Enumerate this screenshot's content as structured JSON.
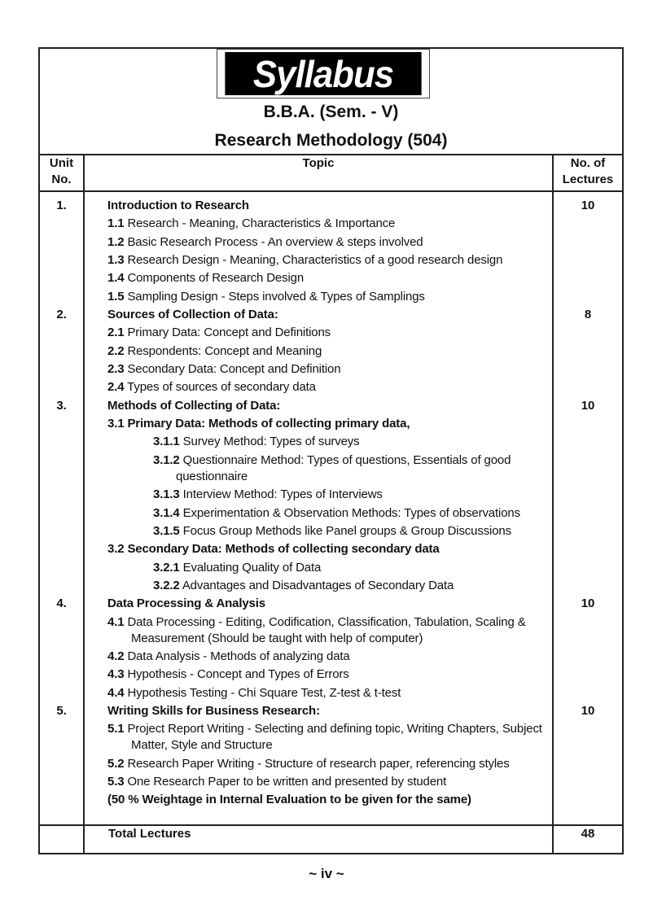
{
  "logo_text": "Syllabus",
  "course": "B.B.A. (Sem. - V)",
  "subject": "Research Methodology (504)",
  "headers": {
    "unit": [
      "Unit",
      "No."
    ],
    "topic": "Topic",
    "lectures": [
      "No. of",
      "Lectures"
    ]
  },
  "entries": [
    {
      "unit": "1.",
      "lectures": "10",
      "num": "",
      "text": "Introduction to Research",
      "bold": true,
      "level": 1
    },
    {
      "num": "1.1",
      "text": "Research - Meaning, Characteristics & Importance",
      "level": 1
    },
    {
      "num": "1.2",
      "text": "Basic Research Process - An overview & steps involved",
      "level": 1
    },
    {
      "num": "1.3",
      "text": "Research Design - Meaning, Characteristics of  a good research design",
      "level": 1
    },
    {
      "num": "1.4",
      "text": "Components of Research Design",
      "level": 1
    },
    {
      "num": "1.5",
      "text": "Sampling Design - Steps involved & Types of Samplings",
      "level": 1
    },
    {
      "unit": "2.",
      "lectures": "8",
      "num": "",
      "text": "Sources of Collection of Data:",
      "bold": true,
      "level": 1
    },
    {
      "num": "2.1",
      "text": "Primary Data: Concept and Definitions",
      "level": 1
    },
    {
      "num": "2.2",
      "text": "Respondents: Concept and Meaning",
      "level": 1
    },
    {
      "num": "2.3",
      "text": "Secondary Data: Concept and Definition",
      "level": 1
    },
    {
      "num": "2.4",
      "text": "Types of sources of secondary data",
      "level": 1
    },
    {
      "unit": "3.",
      "lectures": "10",
      "num": "",
      "text": "Methods of Collecting of Data:",
      "bold": true,
      "level": 1
    },
    {
      "num": "3.1",
      "text": "Primary Data: Methods of collecting primary data,",
      "bold": true,
      "level": 1
    },
    {
      "num": "3.1.1",
      "text": "Survey Method: Types of surveys",
      "level": 2
    },
    {
      "num": "3.1.2",
      "text": "Questionnaire Method: Types of questions, Essentials of good questionnaire",
      "level": 2
    },
    {
      "num": "3.1.3",
      "text": "Interview Method: Types of Interviews",
      "level": 2
    },
    {
      "num": "3.1.4",
      "text": "Experimentation & Observation Methods: Types of observations",
      "level": 2
    },
    {
      "num": "3.1.5",
      "text": "Focus Group Methods like Panel groups & Group Discussions",
      "level": 2
    },
    {
      "num": "3.2",
      "text": "Secondary Data: Methods of collecting secondary data",
      "bold": true,
      "level": 1
    },
    {
      "num": "3.2.1",
      "text": "Evaluating Quality of Data",
      "level": 2
    },
    {
      "num": "3.2.2",
      "text": "Advantages and Disadvantages of Secondary Data",
      "level": 2
    },
    {
      "unit": "4.",
      "lectures": "10",
      "num": "",
      "text": "Data Processing & Analysis",
      "bold": true,
      "level": 1
    },
    {
      "num": "4.1",
      "text": "Data Processing - Editing, Codification, Classification, Tabulation, Scaling & Measurement (Should be taught with help of computer)",
      "level": 1
    },
    {
      "num": "4.2",
      "text": "Data Analysis - Methods of analyzing data",
      "level": 1
    },
    {
      "num": "4.3",
      "text": "Hypothesis -  Concept and Types of Errors",
      "level": 1
    },
    {
      "num": "4.4",
      "text": "Hypothesis Testing - Chi Square Test, Z-test & t-test",
      "level": 1
    },
    {
      "unit": "5.",
      "lectures": "10",
      "num": "",
      "text": "Writing Skills for Business Research:",
      "bold": true,
      "level": 1
    },
    {
      "num": "5.1",
      "text": "Project Report Writing - Selecting and defining topic, Writing Chapters, Subject Matter, Style and Structure",
      "level": 1
    },
    {
      "num": "5.2",
      "text": "Research Paper Writing - Structure of research paper, referencing styles",
      "level": 1
    },
    {
      "num": "5.3",
      "text": "One Research Paper to be written and presented by student",
      "level": 1
    },
    {
      "num": "",
      "text": "(50 % Weightage in Internal Evaluation to be given for the same)",
      "bold": true,
      "level": 1
    }
  ],
  "total": {
    "label": "Total Lectures",
    "value": "48"
  },
  "page_number": "~ iv ~"
}
